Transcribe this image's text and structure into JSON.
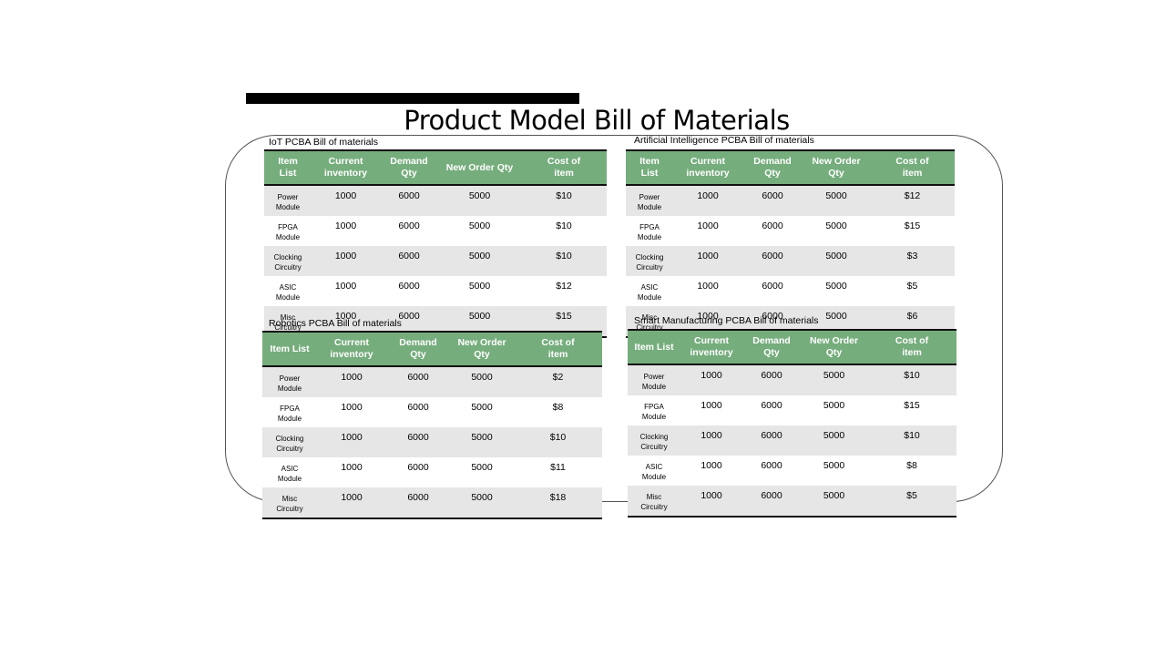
{
  "title": "Product Model Bill of Materials",
  "headers": [
    "Item List",
    "Current inventory",
    "Demand Qty",
    "New Order Qty",
    "Cost of item"
  ],
  "tables": {
    "iot": {
      "caption": "IoT PCBA  Bill of materials",
      "headers": [
        "Item\nList",
        "Current\ninventory",
        "Demand\nQty",
        "New Order Qty",
        "Cost of\nitem"
      ],
      "rows": [
        {
          "item": "Power\nModule",
          "inventory": "1000",
          "demand": "6000",
          "order": "5000",
          "cost": "$10"
        },
        {
          "item": "FPGA\nModule",
          "inventory": "1000",
          "demand": "6000",
          "order": "5000",
          "cost": "$10"
        },
        {
          "item": "Clocking\nCircuitry",
          "inventory": "1000",
          "demand": "6000",
          "order": "5000",
          "cost": "$10"
        },
        {
          "item": "ASIC\nModule",
          "inventory": "1000",
          "demand": "6000",
          "order": "5000",
          "cost": "$12"
        },
        {
          "item": "Misc\nCircuitry",
          "inventory": "1000",
          "demand": "6000",
          "order": "5000",
          "cost": "$15"
        }
      ]
    },
    "ai": {
      "caption": "Artificial Intelligence  PCBA Bill of materials",
      "headers": [
        "Item\nList",
        "Current\ninventory",
        "Demand\nQty",
        "New Order\nQty",
        "Cost of\nitem"
      ],
      "rows": [
        {
          "item": "Power\nModule",
          "inventory": "1000",
          "demand": "6000",
          "order": "5000",
          "cost": "$12"
        },
        {
          "item": "FPGA\nModule",
          "inventory": "1000",
          "demand": "6000",
          "order": "5000",
          "cost": "$15"
        },
        {
          "item": "Clocking\nCircuitry",
          "inventory": "1000",
          "demand": "6000",
          "order": "5000",
          "cost": "$3"
        },
        {
          "item": "ASIC\nModule",
          "inventory": "1000",
          "demand": "6000",
          "order": "5000",
          "cost": "$5"
        },
        {
          "item": "Misc\nCircuitry",
          "inventory": "1000",
          "demand": "6000",
          "order": "5000",
          "cost": "$6"
        }
      ]
    },
    "robotics": {
      "caption": "Robotics PCBA Bill of materials",
      "headers": [
        "Item List",
        "Current\ninventory",
        "Demand\nQty",
        "New Order\nQty",
        "Cost of\nitem"
      ],
      "rows": [
        {
          "item": "Power\nModule",
          "inventory": "1000",
          "demand": "6000",
          "order": "5000",
          "cost": "$2"
        },
        {
          "item": "FPGA\nModule",
          "inventory": "1000",
          "demand": "6000",
          "order": "5000",
          "cost": "$8"
        },
        {
          "item": "Clocking\nCircuitry",
          "inventory": "1000",
          "demand": "6000",
          "order": "5000",
          "cost": "$10"
        },
        {
          "item": "ASIC\nModule",
          "inventory": "1000",
          "demand": "6000",
          "order": "5000",
          "cost": "$11"
        },
        {
          "item": "Misc\nCircuitry",
          "inventory": "1000",
          "demand": "6000",
          "order": "5000",
          "cost": "$18"
        }
      ]
    },
    "smart": {
      "caption": "Smart Manufacturing PCBA  Bill of materials",
      "headers": [
        "Item List",
        "Current\ninventory",
        "Demand\nQty",
        "New Order\nQty",
        "Cost of\nitem"
      ],
      "rows": [
        {
          "item": "Power\nModule",
          "inventory": "1000",
          "demand": "6000",
          "order": "5000",
          "cost": "$10"
        },
        {
          "item": "FPGA\nModule",
          "inventory": "1000",
          "demand": "6000",
          "order": "5000",
          "cost": "$15"
        },
        {
          "item": "Clocking\nCircuitry",
          "inventory": "1000",
          "demand": "6000",
          "order": "5000",
          "cost": "$10"
        },
        {
          "item": "ASIC\nModule",
          "inventory": "1000",
          "demand": "6000",
          "order": "5000",
          "cost": "$8"
        },
        {
          "item": "Misc\nCircuitry",
          "inventory": "1000",
          "demand": "6000",
          "order": "5000",
          "cost": "$5"
        }
      ]
    }
  },
  "colors": {
    "header_fill": "#76ad7d",
    "row_shade": "#e6e6e6",
    "rule": "#111111"
  }
}
